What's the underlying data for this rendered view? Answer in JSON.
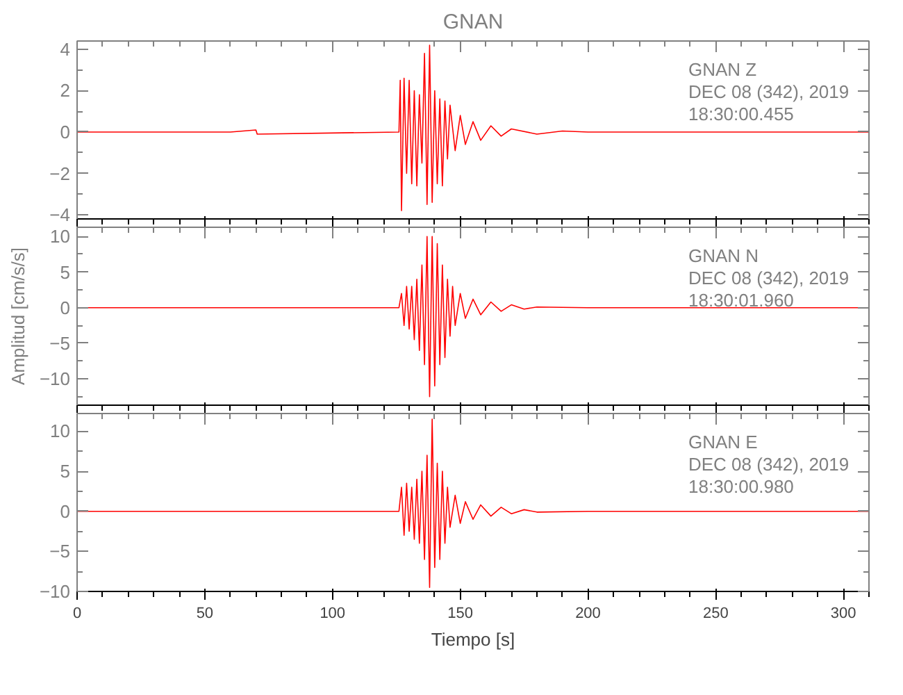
{
  "chart_data": [
    {
      "type": "line",
      "title": "GNAN",
      "color": "#ff0000",
      "grid": false,
      "tick_labels": "y",
      "annotations": [
        "GNAN   Z",
        "DEC 08 (342), 2019",
        "18:30:00.455"
      ],
      "x": [
        0,
        60,
        70,
        70.5,
        126,
        126.5,
        127,
        128,
        129,
        130,
        131,
        132,
        133,
        134,
        135,
        136,
        137,
        138,
        139,
        140,
        141,
        142,
        143,
        144,
        145,
        146,
        148,
        150,
        152,
        155,
        158,
        162,
        166,
        170,
        180,
        190,
        200,
        310
      ],
      "values": [
        0,
        0,
        0.1,
        -0.1,
        0,
        2.5,
        -3.8,
        2.6,
        -2,
        2.5,
        -2.5,
        2,
        -2.6,
        1.8,
        -1.5,
        3.8,
        -3.5,
        4.2,
        -3.4,
        2,
        -2.5,
        1.6,
        -2.6,
        1.5,
        -1.3,
        1.3,
        -0.9,
        0.8,
        -0.6,
        0.5,
        -0.4,
        0.3,
        -0.2,
        0.15,
        -0.1,
        0.05,
        0,
        0
      ],
      "xlim": [
        0,
        310
      ],
      "xticks": [
        0,
        50,
        100,
        150,
        200,
        250,
        300
      ],
      "ylim": [
        -4.2,
        4.4
      ],
      "yticks": [
        -4,
        -2,
        0,
        2,
        4
      ]
    },
    {
      "type": "line",
      "ylabel": "Amplitud [cm/s/s]",
      "color": "#ff0000",
      "grid": false,
      "tick_labels": "y",
      "annotations": [
        "GNAN   N",
        "DEC 08 (342), 2019",
        "18:30:01.960"
      ],
      "x": [
        0,
        126,
        127,
        128,
        129,
        130,
        131,
        132,
        133,
        134,
        135,
        136,
        137,
        138,
        139,
        140,
        141,
        142,
        143,
        144,
        145,
        146,
        147,
        148,
        150,
        152,
        155,
        158,
        162,
        166,
        170,
        175,
        180,
        200,
        310
      ],
      "values": [
        0,
        0,
        2,
        -2.5,
        3,
        -3,
        3,
        -4.5,
        4,
        -6,
        6,
        -8,
        10,
        -12.5,
        10,
        -11,
        9,
        -8,
        6,
        -7,
        4,
        -4,
        3,
        -2.5,
        2,
        -1.5,
        1.2,
        -1,
        0.8,
        -0.5,
        0.4,
        -0.2,
        0.1,
        0,
        0
      ],
      "xlim": [
        0,
        310
      ],
      "xticks": [
        0,
        50,
        100,
        150,
        200,
        250,
        300
      ],
      "ylim": [
        -13.7,
        11.3
      ],
      "yticks": [
        -10,
        -5,
        0,
        5,
        10
      ]
    },
    {
      "type": "line",
      "xlabel": "Tiempo [s]",
      "color": "#ff0000",
      "grid": false,
      "annotations": [
        "GNAN   E",
        "DEC 08 (342), 2019",
        "18:30:00.980"
      ],
      "x": [
        0,
        126,
        127,
        128,
        129,
        130,
        131,
        132,
        133,
        134,
        135,
        136,
        137,
        138,
        139,
        140,
        141,
        142,
        143,
        144,
        145,
        146,
        148,
        150,
        152,
        155,
        158,
        162,
        166,
        170,
        175,
        180,
        200,
        310
      ],
      "values": [
        0,
        0,
        3,
        -3,
        3.5,
        -2.5,
        3,
        -3.5,
        4,
        -4,
        5,
        -6,
        7,
        -9.5,
        11.5,
        -7,
        6,
        -6,
        5,
        -4,
        3,
        -2,
        2,
        -1.5,
        1.2,
        -1,
        0.8,
        -0.6,
        0.5,
        -0.3,
        0.2,
        -0.1,
        0,
        0
      ],
      "xlim": [
        0,
        310
      ],
      "xticks": [
        0,
        50,
        100,
        150,
        200,
        250,
        300
      ],
      "ylim": [
        -10,
        12.2
      ],
      "yticks": [
        -10,
        -5,
        0,
        5,
        10
      ]
    }
  ]
}
